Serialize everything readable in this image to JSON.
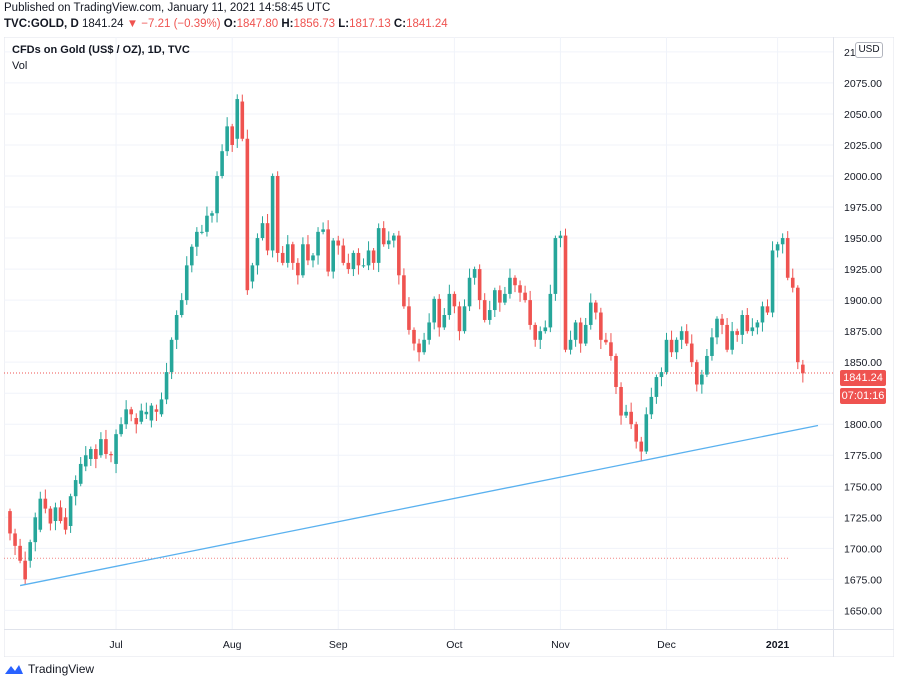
{
  "header": {
    "published": "Published on TradingView.com, January 11, 2021 14:58:45 UTC",
    "symbol": "TVC:GOLD, D",
    "last": "1841.24",
    "change": "▼ −7.21 (−0.39%)",
    "o_label": "O:",
    "o": "1847.80",
    "h_label": "H:",
    "h": "1856.73",
    "l_label": "L:",
    "l": "1817.13",
    "c_label": "C:",
    "c": "1841.24"
  },
  "legend": {
    "title": "CFDs on Gold (US$ / OZ), 1D, TVC",
    "vol": "Vol"
  },
  "currency_button": "USD",
  "price_tag": {
    "price": "1841.24",
    "countdown": "07:01:16"
  },
  "footer": {
    "brand": "TradingView"
  },
  "colors": {
    "up": "#26a69a",
    "down": "#ef5350",
    "trendline": "#5ab1ef",
    "grid": "#f0f3fa"
  },
  "chart_data": {
    "type": "candlestick",
    "y_ticks": [
      "1650.00",
      "1675.00",
      "1700.00",
      "1725.00",
      "1750.00",
      "1775.00",
      "1800.00",
      "1825.00",
      "1850.00",
      "1875.00",
      "1900.00",
      "1925.00",
      "1950.00",
      "1975.00",
      "2000.00",
      "2025.00",
      "2050.00",
      "2075.00",
      "2100.00"
    ],
    "ylim": [
      1635,
      2112
    ],
    "x_ticks": [
      "Jul",
      "Aug",
      "Sep",
      "Oct",
      "Nov",
      "Dec",
      "2021"
    ],
    "x_tick_bars": [
      21,
      44,
      65,
      88,
      109,
      130,
      152
    ],
    "trendline": {
      "from": [
        "bar",
        2,
        1670
      ],
      "to": [
        "bar",
        160,
        1799
      ]
    },
    "dotted_levels": [
      1692,
      1841.24
    ],
    "candles": [
      [
        1730,
        1712
      ],
      [
        1712,
        1702
      ],
      [
        1702,
        1690
      ],
      [
        1690,
        1675
      ],
      [
        1690,
        1705
      ],
      [
        1705,
        1725
      ],
      [
        1715,
        1740
      ],
      [
        1740,
        1732
      ],
      [
        1732,
        1720
      ],
      [
        1722,
        1733
      ],
      [
        1733,
        1722
      ],
      [
        1725,
        1715
      ],
      [
        1718,
        1742
      ],
      [
        1742,
        1755
      ],
      [
        1752,
        1768
      ],
      [
        1766,
        1775
      ],
      [
        1772,
        1780
      ],
      [
        1780,
        1772
      ],
      [
        1775,
        1788
      ],
      [
        1788,
        1776
      ],
      [
        1776,
        1775
      ],
      [
        1768,
        1792
      ],
      [
        1792,
        1800
      ],
      [
        1800,
        1812
      ],
      [
        1812,
        1808
      ],
      [
        1805,
        1800
      ],
      [
        1802,
        1811
      ],
      [
        1808,
        1810
      ],
      [
        1803,
        1815
      ],
      [
        1812,
        1810
      ],
      [
        1808,
        1820
      ],
      [
        1820,
        1842
      ],
      [
        1842,
        1868
      ],
      [
        1868,
        1888
      ],
      [
        1888,
        1900
      ],
      [
        1900,
        1928
      ],
      [
        1928,
        1943
      ],
      [
        1943,
        1955
      ],
      [
        1955,
        1955
      ],
      [
        1955,
        1968
      ],
      [
        1968,
        1970
      ],
      [
        1970,
        2000
      ],
      [
        2000,
        2020
      ],
      [
        2020,
        2040
      ],
      [
        2040,
        2025
      ],
      [
        2030,
        2062
      ],
      [
        2060,
        2030
      ],
      [
        2030,
        1908
      ],
      [
        1915,
        1928
      ],
      [
        1928,
        1950
      ],
      [
        1950,
        1962
      ],
      [
        1962,
        1940
      ],
      [
        1940,
        2000
      ],
      [
        2000,
        1938
      ],
      [
        1938,
        1930
      ],
      [
        1930,
        1945
      ],
      [
        1945,
        1930
      ],
      [
        1930,
        1920
      ],
      [
        1920,
        1945
      ],
      [
        1945,
        1932
      ],
      [
        1932,
        1936
      ],
      [
        1936,
        1955
      ],
      [
        1955,
        1957
      ],
      [
        1957,
        1923
      ],
      [
        1923,
        1948
      ],
      [
        1948,
        1944
      ],
      [
        1944,
        1930
      ],
      [
        1930,
        1925
      ],
      [
        1925,
        1938
      ],
      [
        1938,
        1928
      ],
      [
        1928,
        1928
      ],
      [
        1928,
        1940
      ],
      [
        1940,
        1930
      ],
      [
        1930,
        1958
      ],
      [
        1958,
        1945
      ],
      [
        1945,
        1948
      ],
      [
        1948,
        1952
      ],
      [
        1952,
        1920
      ],
      [
        1920,
        1895
      ],
      [
        1895,
        1876
      ],
      [
        1876,
        1865
      ],
      [
        1865,
        1858
      ],
      [
        1858,
        1868
      ],
      [
        1868,
        1882
      ],
      [
        1882,
        1901
      ],
      [
        1901,
        1878
      ],
      [
        1878,
        1888
      ],
      [
        1888,
        1905
      ],
      [
        1905,
        1895
      ],
      [
        1895,
        1875
      ],
      [
        1875,
        1895
      ],
      [
        1895,
        1918
      ],
      [
        1918,
        1925
      ],
      [
        1925,
        1900
      ],
      [
        1900,
        1884
      ],
      [
        1884,
        1892
      ],
      [
        1892,
        1908
      ],
      [
        1908,
        1898
      ],
      [
        1898,
        1905
      ],
      [
        1905,
        1918
      ],
      [
        1918,
        1912
      ],
      [
        1912,
        1906
      ],
      [
        1906,
        1900
      ],
      [
        1900,
        1880
      ],
      [
        1880,
        1868
      ],
      [
        1868,
        1875
      ],
      [
        1875,
        1878
      ],
      [
        1878,
        1905
      ],
      [
        1905,
        1950
      ],
      [
        1950,
        1952
      ],
      [
        1952,
        1860
      ],
      [
        1860,
        1868
      ],
      [
        1868,
        1882
      ],
      [
        1882,
        1865
      ],
      [
        1865,
        1880
      ],
      [
        1880,
        1898
      ],
      [
        1898,
        1890
      ],
      [
        1890,
        1868
      ],
      [
        1868,
        1866
      ],
      [
        1866,
        1855
      ],
      [
        1855,
        1830
      ],
      [
        1830,
        1807
      ],
      [
        1807,
        1810
      ],
      [
        1810,
        1800
      ],
      [
        1800,
        1786
      ],
      [
        1786,
        1778
      ],
      [
        1778,
        1808
      ],
      [
        1808,
        1822
      ],
      [
        1822,
        1838
      ],
      [
        1838,
        1842
      ],
      [
        1842,
        1868
      ],
      [
        1868,
        1858
      ],
      [
        1858,
        1868
      ],
      [
        1868,
        1875
      ],
      [
        1875,
        1865
      ],
      [
        1865,
        1850
      ],
      [
        1850,
        1832
      ],
      [
        1832,
        1840
      ],
      [
        1840,
        1855
      ],
      [
        1855,
        1870
      ],
      [
        1870,
        1885
      ],
      [
        1885,
        1880
      ],
      [
        1880,
        1860
      ],
      [
        1860,
        1875
      ],
      [
        1875,
        1872
      ],
      [
        1872,
        1888
      ],
      [
        1888,
        1875
      ],
      [
        1875,
        1878
      ],
      [
        1878,
        1882
      ],
      [
        1882,
        1895
      ],
      [
        1895,
        1890
      ],
      [
        1890,
        1940
      ],
      [
        1940,
        1945
      ],
      [
        1945,
        1950
      ],
      [
        1950,
        1918
      ],
      [
        1918,
        1910
      ],
      [
        1910,
        1850
      ],
      [
        1848,
        1841
      ]
    ]
  }
}
